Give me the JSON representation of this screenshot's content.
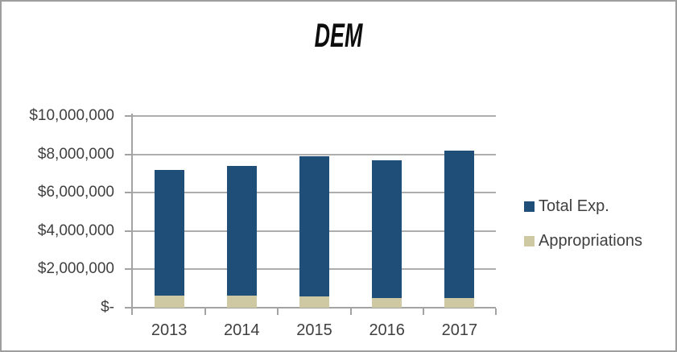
{
  "chart_data": {
    "type": "bar",
    "title": "DEM",
    "categories": [
      "2013",
      "2014",
      "2015",
      "2016",
      "2017"
    ],
    "series": [
      {
        "name": "Total Exp.",
        "color": "#1F4E79",
        "values": [
          7200000,
          7400000,
          7900000,
          7700000,
          8200000
        ]
      },
      {
        "name": "Appropriations",
        "color": "#CFC9A3",
        "values": [
          650000,
          650000,
          600000,
          500000,
          500000
        ]
      }
    ],
    "series_overlap": "Appropriations bar drawn in front of Total Exp. bar (100% overlap)",
    "y_axis": {
      "min": 0,
      "max": 10000000,
      "ticks": [
        {
          "value": 10000000,
          "label": "$10,000,000"
        },
        {
          "value": 8000000,
          "label": "$8,000,000"
        },
        {
          "value": 6000000,
          "label": "$6,000,000"
        },
        {
          "value": 4000000,
          "label": "$4,000,000"
        },
        {
          "value": 2000000,
          "label": "$2,000,000"
        },
        {
          "value": 0,
          "label": "$-"
        }
      ]
    },
    "xlabel": "",
    "ylabel": "",
    "grid": "horizontal",
    "legend_position": "right",
    "colors": {
      "gridline": "#ADADAD",
      "axis": "#A3A3A3",
      "tick": "#A3A3A3",
      "label_text": "#404040",
      "title_text": "#0D0D0D",
      "frame_border": "#9E9E9E",
      "background": "#FFFFFF"
    }
  }
}
